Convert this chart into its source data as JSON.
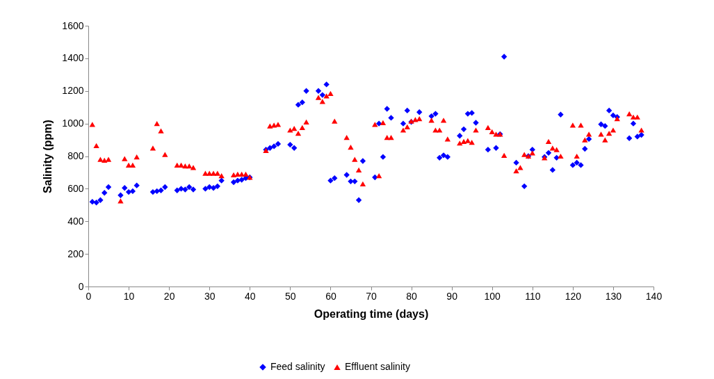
{
  "chart_data": {
    "type": "scatter",
    "xlabel": "Operating time (days)",
    "ylabel": "Salinity (ppm)",
    "xlim": [
      0,
      140
    ],
    "xticks": [
      0,
      10,
      20,
      30,
      40,
      50,
      60,
      70,
      80,
      90,
      100,
      110,
      120,
      130,
      140
    ],
    "ylim": [
      0,
      1600
    ],
    "yticks": [
      0,
      200,
      400,
      600,
      800,
      1000,
      1200,
      1400,
      1600
    ],
    "grid": false,
    "legend": "bottom",
    "series": [
      {
        "name": "Feed salinity",
        "color": "#0000ff",
        "marker": "diamond",
        "x": [
          1,
          2,
          3,
          4,
          5,
          8,
          9,
          10,
          11,
          12,
          16,
          17,
          18,
          19,
          22,
          23,
          24,
          25,
          26,
          29,
          30,
          31,
          32,
          33,
          36,
          37,
          38,
          39,
          40,
          44,
          45,
          46,
          47,
          50,
          51,
          52,
          53,
          54,
          57,
          58,
          59,
          60,
          61,
          64,
          65,
          66,
          67,
          68,
          71,
          72,
          73,
          74,
          75,
          78,
          79,
          80,
          82,
          85,
          86,
          87,
          88,
          89,
          92,
          93,
          94,
          95,
          96,
          99,
          101,
          102,
          103,
          106,
          108,
          109,
          110,
          113,
          114,
          115,
          116,
          117,
          120,
          121,
          122,
          123,
          124,
          127,
          128,
          129,
          130,
          131,
          134,
          135,
          136,
          137
        ],
        "values": [
          520,
          515,
          530,
          575,
          610,
          560,
          605,
          580,
          585,
          620,
          580,
          585,
          590,
          610,
          590,
          600,
          595,
          610,
          595,
          600,
          610,
          605,
          615,
          650,
          640,
          650,
          655,
          665,
          670,
          840,
          850,
          860,
          875,
          870,
          850,
          1115,
          1130,
          1200,
          1200,
          1175,
          1240,
          650,
          665,
          685,
          645,
          645,
          530,
          770,
          670,
          1000,
          795,
          1090,
          1035,
          1000,
          1080,
          1010,
          1070,
          1045,
          1060,
          790,
          805,
          795,
          925,
          965,
          1060,
          1065,
          1005,
          840,
          850,
          935,
          1410,
          760,
          615,
          800,
          840,
          795,
          820,
          715,
          790,
          1055,
          745,
          760,
          745,
          845,
          905,
          995,
          985,
          1080,
          1050,
          1040,
          910,
          1000,
          920,
          930
        ]
      },
      {
        "name": "Effluent salinity",
        "color": "#ff0000",
        "marker": "triangle",
        "x": [
          1,
          2,
          3,
          4,
          5,
          8,
          9,
          10,
          11,
          12,
          16,
          17,
          18,
          19,
          22,
          23,
          24,
          25,
          26,
          29,
          30,
          31,
          32,
          33,
          36,
          37,
          38,
          39,
          40,
          44,
          45,
          46,
          47,
          50,
          51,
          52,
          53,
          54,
          57,
          58,
          59,
          60,
          61,
          64,
          65,
          66,
          67,
          68,
          71,
          72,
          73,
          74,
          75,
          78,
          79,
          80,
          81,
          82,
          85,
          86,
          87,
          88,
          89,
          92,
          93,
          94,
          95,
          96,
          99,
          100,
          101,
          102,
          103,
          106,
          107,
          108,
          109,
          110,
          113,
          114,
          115,
          116,
          117,
          120,
          121,
          122,
          123,
          124,
          127,
          128,
          129,
          130,
          131,
          134,
          135,
          136,
          137
        ],
        "values": [
          995,
          865,
          780,
          775,
          780,
          525,
          785,
          745,
          745,
          795,
          850,
          1000,
          955,
          810,
          745,
          745,
          740,
          740,
          730,
          695,
          695,
          695,
          695,
          680,
          685,
          690,
          690,
          690,
          670,
          835,
          985,
          990,
          995,
          960,
          970,
          940,
          975,
          1010,
          1160,
          1135,
          1170,
          1185,
          1015,
          915,
          855,
          780,
          715,
          630,
          995,
          680,
          1005,
          915,
          915,
          960,
          980,
          1015,
          1025,
          1030,
          1020,
          960,
          960,
          1020,
          905,
          880,
          890,
          895,
          885,
          960,
          975,
          950,
          935,
          935,
          805,
          710,
          730,
          810,
          800,
          820,
          790,
          890,
          850,
          840,
          800,
          990,
          800,
          990,
          900,
          935,
          935,
          900,
          940,
          960,
          1030,
          1060,
          1040,
          1040,
          960
        ]
      }
    ]
  }
}
